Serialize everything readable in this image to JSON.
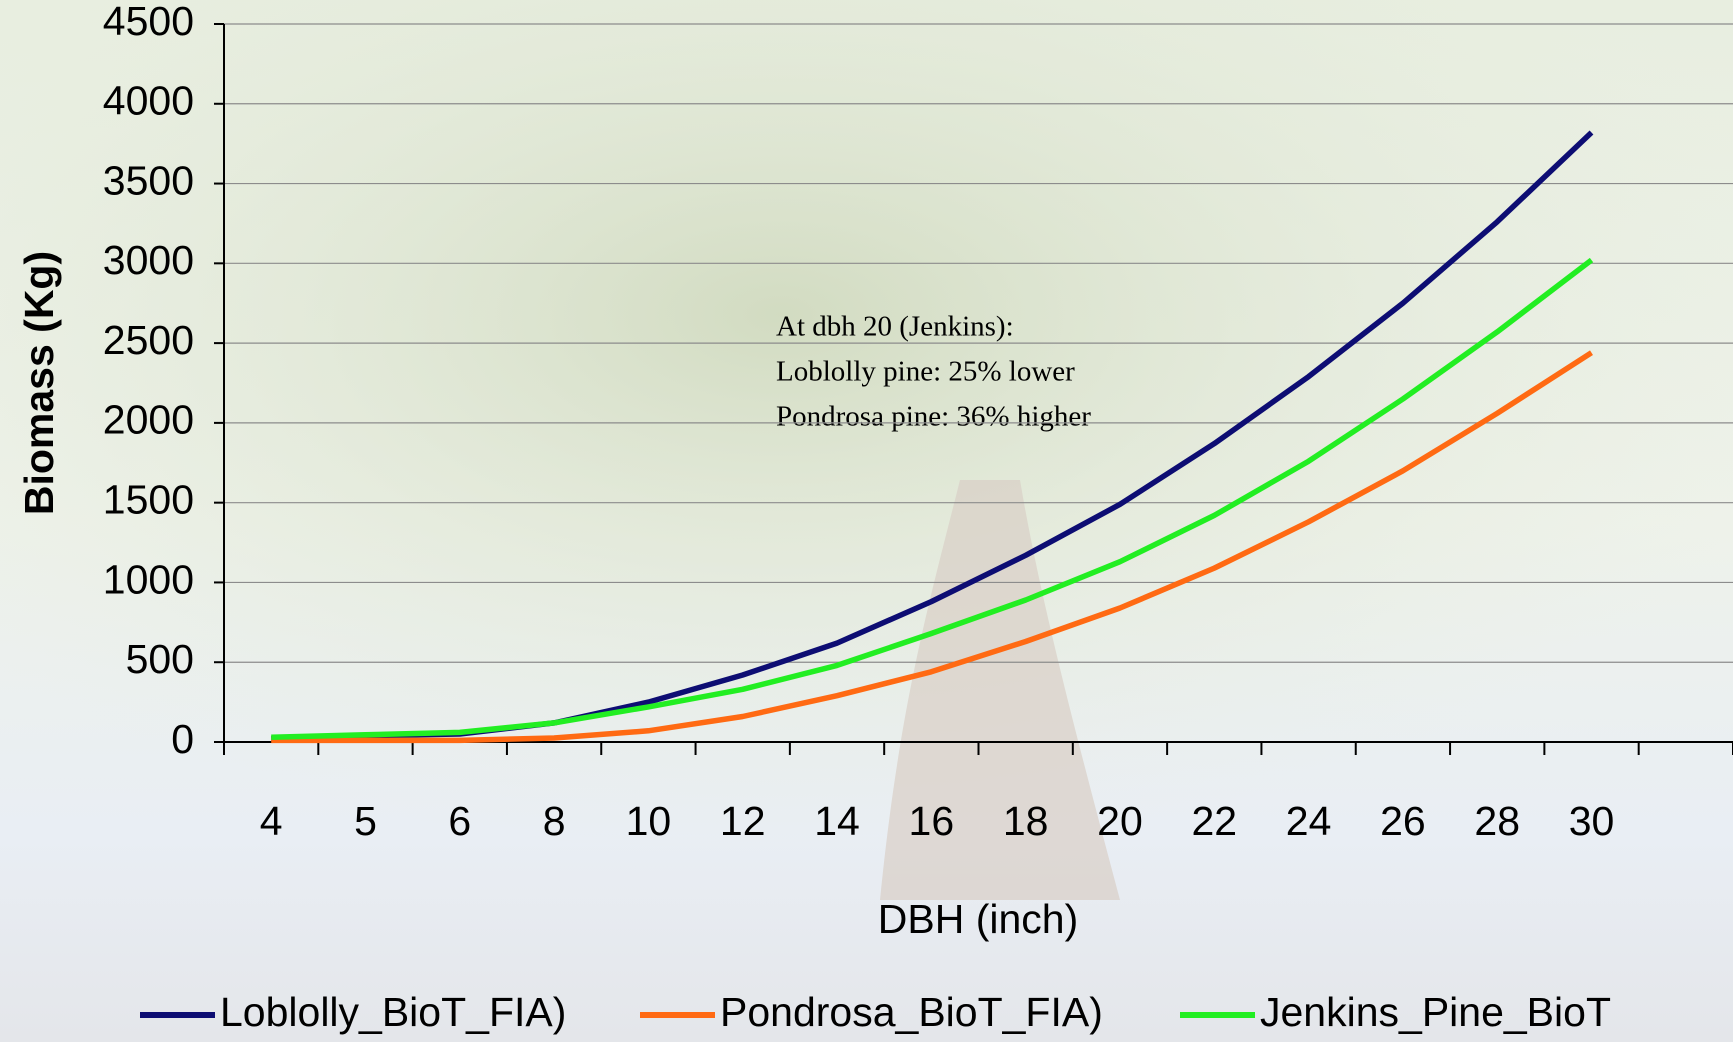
{
  "chart_data": {
    "type": "line",
    "y_label": "Biomass (Kg)",
    "x_label": "DBH (inch)",
    "annotation": [
      "At dbh 20 (Jenkins):",
      "Loblolly pine: 25% lower",
      "Pondrosa pine: 36% higher"
    ],
    "categories": [
      4,
      5,
      6,
      8,
      10,
      12,
      14,
      16,
      18,
      20,
      22,
      24,
      26,
      28,
      30,
      null
    ],
    "series": [
      {
        "name": "Loblolly_BioT_FIA)",
        "color": "#0d0d73",
        "values": [
          20,
          40,
          50,
          120,
          250,
          420,
          620,
          880,
          1170,
          1490,
          1870,
          2290,
          2750,
          3260,
          3820,
          null
        ]
      },
      {
        "name": "Pondrosa_BioT_FIA)",
        "color": "#ff6a13",
        "values": [
          10,
          10,
          10,
          25,
          70,
          160,
          290,
          440,
          630,
          840,
          1090,
          1380,
          1700,
          2060,
          2440,
          null
        ]
      },
      {
        "name": "Jenkins_Pine_BioT",
        "color": "#22ee22",
        "values": [
          30,
          45,
          60,
          120,
          220,
          330,
          480,
          680,
          890,
          1130,
          1420,
          1760,
          2150,
          2570,
          3020,
          null
        ]
      }
    ],
    "ylim": [
      0,
      4500
    ],
    "yticks": [
      0,
      500,
      1000,
      1500,
      2000,
      2500,
      3000,
      3500,
      4000,
      4500
    ],
    "grid": true
  }
}
